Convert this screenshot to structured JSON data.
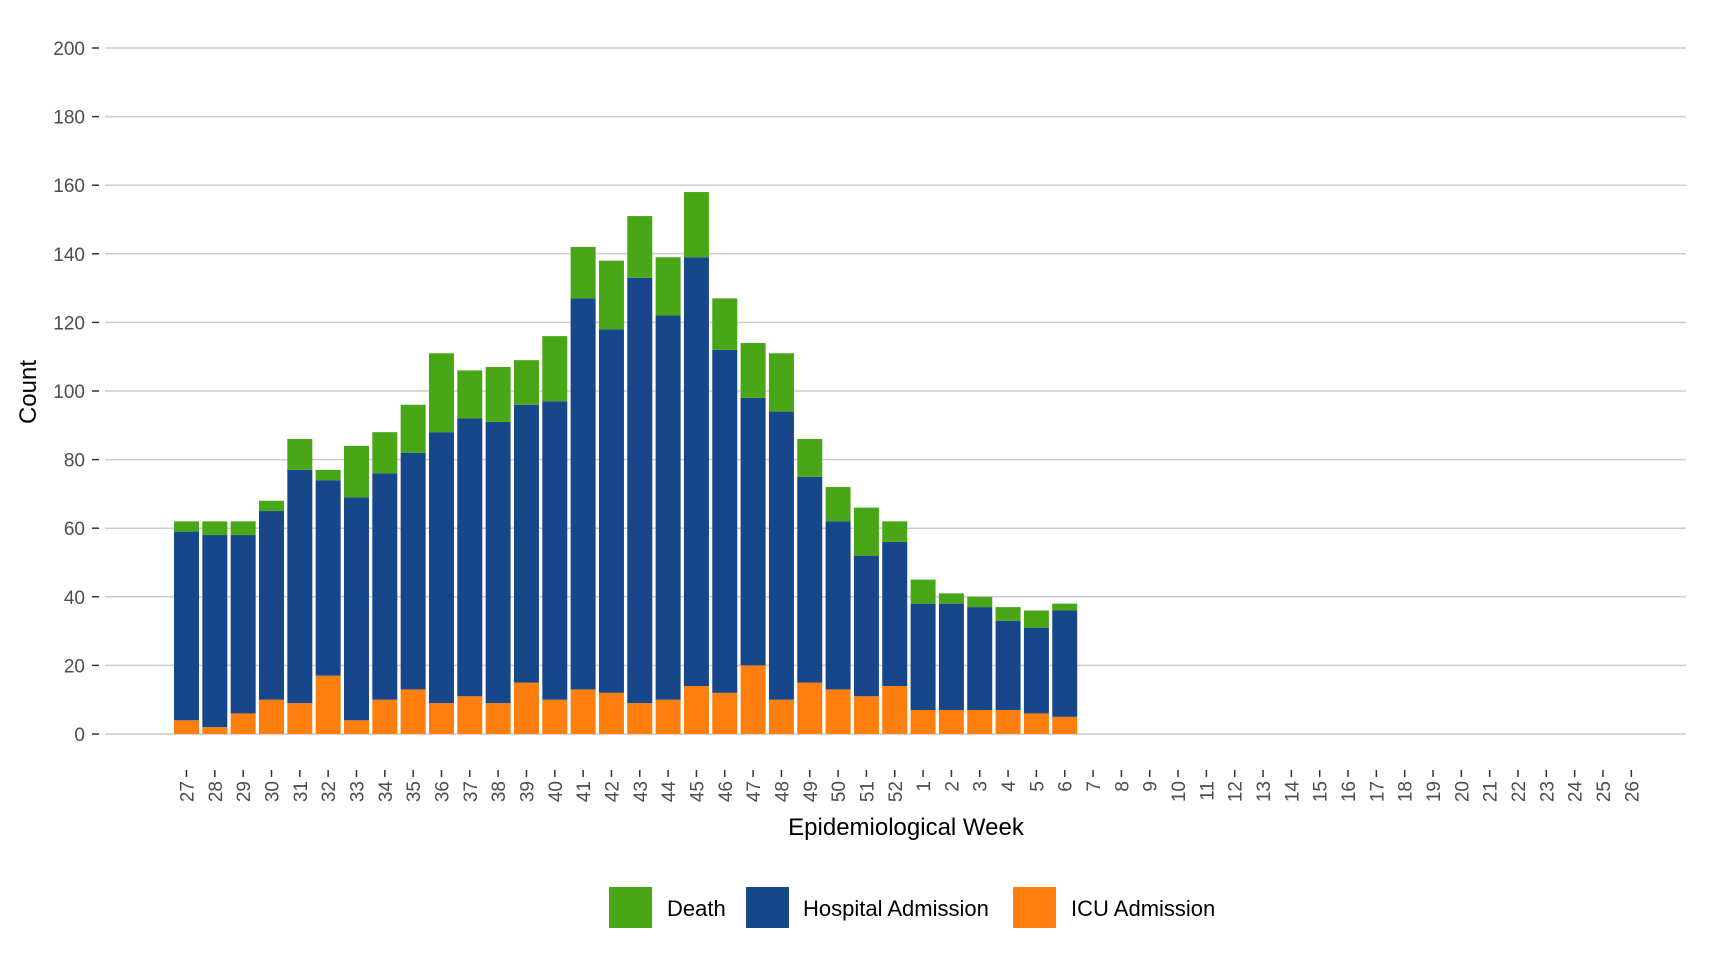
{
  "chart_data": {
    "type": "bar",
    "stacked": true,
    "xlabel": "Epidemiological Week",
    "ylabel": "Count",
    "ylim": [
      0,
      200
    ],
    "yticks": [
      0,
      20,
      40,
      60,
      80,
      100,
      120,
      140,
      160,
      180,
      200
    ],
    "grid": "horizontal",
    "legend_position": "bottom",
    "categories": [
      "27",
      "28",
      "29",
      "30",
      "31",
      "32",
      "33",
      "34",
      "35",
      "36",
      "37",
      "38",
      "39",
      "40",
      "41",
      "42",
      "43",
      "44",
      "45",
      "46",
      "47",
      "48",
      "49",
      "50",
      "51",
      "52",
      "1",
      "2",
      "3",
      "4",
      "5",
      "6",
      "7",
      "8",
      "9",
      "10",
      "11",
      "12",
      "13",
      "14",
      "15",
      "16",
      "17",
      "18",
      "19",
      "20",
      "21",
      "22",
      "23",
      "24",
      "25",
      "26"
    ],
    "series": [
      {
        "name": "ICU Admission",
        "color": "#FF7F0E",
        "values": [
          4,
          2,
          6,
          10,
          9,
          17,
          4,
          10,
          13,
          9,
          11,
          9,
          15,
          10,
          13,
          12,
          9,
          10,
          14,
          12,
          20,
          10,
          15,
          13,
          11,
          14,
          7,
          7,
          7,
          7,
          6,
          5,
          0,
          0,
          0,
          0,
          0,
          0,
          0,
          0,
          0,
          0,
          0,
          0,
          0,
          0,
          0,
          0,
          0,
          0,
          0,
          0
        ]
      },
      {
        "name": "Hospital Admission",
        "color": "#17468A",
        "values": [
          55,
          56,
          52,
          55,
          68,
          57,
          65,
          66,
          69,
          79,
          81,
          82,
          81,
          87,
          114,
          106,
          124,
          112,
          125,
          100,
          78,
          84,
          60,
          49,
          41,
          42,
          31,
          31,
          30,
          26,
          25,
          31,
          0,
          0,
          0,
          0,
          0,
          0,
          0,
          0,
          0,
          0,
          0,
          0,
          0,
          0,
          0,
          0,
          0,
          0,
          0,
          0
        ]
      },
      {
        "name": "Death",
        "color": "#49A617",
        "values": [
          3,
          4,
          4,
          3,
          9,
          3,
          15,
          12,
          14,
          23,
          14,
          16,
          13,
          19,
          15,
          20,
          18,
          17,
          19,
          15,
          16,
          17,
          11,
          10,
          14,
          6,
          7,
          3,
          3,
          4,
          5,
          2,
          0,
          0,
          0,
          0,
          0,
          0,
          0,
          0,
          0,
          0,
          0,
          0,
          0,
          0,
          0,
          0,
          0,
          0,
          0,
          0
        ]
      }
    ],
    "legend_order": [
      "Death",
      "Hospital Admission",
      "ICU Admission"
    ]
  }
}
